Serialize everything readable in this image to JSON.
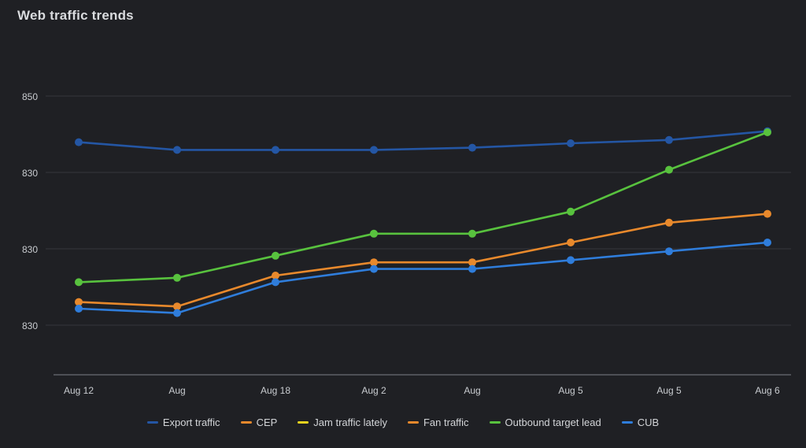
{
  "chart_data": {
    "type": "line",
    "title": "Web traffic trends",
    "xlabel": "",
    "ylabel": "",
    "categories": [
      "Aug 12",
      "Aug",
      "Aug 18",
      "Aug 2",
      "Aug",
      "Aug 5",
      "Aug 5",
      "Aug 6"
    ],
    "y_ticks": [
      "850",
      "830",
      "830",
      "830"
    ],
    "ylim": [
      0,
      100
    ],
    "grid": true,
    "legend_position": "bottom",
    "legend_entries": [
      {
        "label": "Export traffic",
        "color": "#2456a4"
      },
      {
        "label": "CEP",
        "color": "#e8892c"
      },
      {
        "label": "Jam traffic lately",
        "color": "#e8d31f"
      },
      {
        "label": "Fan traffic",
        "color": "#e8892c"
      },
      {
        "label": "Outbound target lead",
        "color": "#58c23e"
      },
      {
        "label": "CUB",
        "color": "#2f7ddb"
      }
    ],
    "series": [
      {
        "color": "#2456a4",
        "values": [
          85.5,
          82,
          82,
          82,
          83,
          85,
          86.5,
          90.5
        ]
      },
      {
        "color": "#58c23e",
        "values": [
          22,
          24,
          34,
          44,
          44,
          54,
          73,
          90
        ]
      },
      {
        "color": "#e8892c",
        "values": [
          13,
          11,
          25,
          31,
          31,
          40,
          49,
          53
        ]
      },
      {
        "color": "#2f7ddb",
        "values": [
          10,
          8,
          22,
          28,
          28,
          32,
          36,
          40
        ]
      }
    ]
  }
}
